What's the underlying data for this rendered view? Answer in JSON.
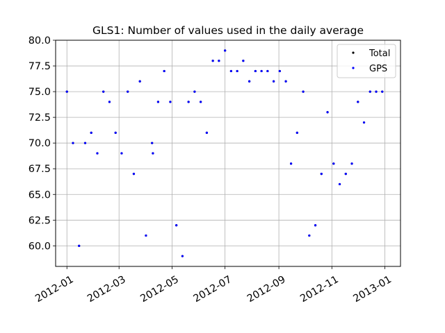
{
  "chart_data": {
    "type": "scatter",
    "title": "GLS1: Number of values used in the daily average",
    "xlabel": "",
    "ylabel": "",
    "x_tick_labels": [
      "2012-01",
      "2012-03",
      "2012-05",
      "2012-07",
      "2012-09",
      "2012-11",
      "2013-01"
    ],
    "x_ticks": [
      "2012-01-01",
      "2012-03-01",
      "2012-05-01",
      "2012-07-01",
      "2012-09-01",
      "2012-11-01",
      "2013-01-01"
    ],
    "xlim": [
      "2011-12-19",
      "2013-01-19"
    ],
    "ylim": [
      58.0,
      80.0
    ],
    "y_ticks": [
      60.0,
      62.5,
      65.0,
      67.5,
      70.0,
      72.5,
      75.0,
      77.5,
      80.0
    ],
    "y_tick_labels": [
      "60.0",
      "62.5",
      "65.0",
      "67.5",
      "70.0",
      "72.5",
      "75.0",
      "77.5",
      "80.0"
    ],
    "grid": true,
    "legend_position": "top-right",
    "series": [
      {
        "name": "Total",
        "color": "#000000",
        "points": [
          [
            "2012-01-01",
            75
          ],
          [
            "2012-01-08",
            70
          ],
          [
            "2012-01-15",
            60
          ],
          [
            "2012-01-22",
            70
          ],
          [
            "2012-01-29",
            71
          ],
          [
            "2012-02-05",
            69
          ],
          [
            "2012-02-12",
            75
          ],
          [
            "2012-02-19",
            74
          ],
          [
            "2012-02-26",
            71
          ],
          [
            "2012-03-04",
            69
          ],
          [
            "2012-03-11",
            75
          ],
          [
            "2012-03-18",
            67
          ],
          [
            "2012-03-25",
            76
          ],
          [
            "2012-04-01",
            61
          ],
          [
            "2012-04-08",
            70
          ],
          [
            "2012-04-09",
            69
          ],
          [
            "2012-04-15",
            74
          ],
          [
            "2012-04-22",
            77
          ],
          [
            "2012-04-29",
            74
          ],
          [
            "2012-05-06",
            62
          ],
          [
            "2012-05-13",
            59
          ],
          [
            "2012-05-20",
            74
          ],
          [
            "2012-05-27",
            75
          ],
          [
            "2012-06-03",
            74
          ],
          [
            "2012-06-10",
            71
          ],
          [
            "2012-06-17",
            78
          ],
          [
            "2012-06-24",
            78
          ],
          [
            "2012-07-01",
            79
          ],
          [
            "2012-07-08",
            77
          ],
          [
            "2012-07-15",
            77
          ],
          [
            "2012-07-22",
            78
          ],
          [
            "2012-07-29",
            76
          ],
          [
            "2012-08-05",
            77
          ],
          [
            "2012-08-12",
            77
          ],
          [
            "2012-08-19",
            77
          ],
          [
            "2012-08-26",
            76
          ],
          [
            "2012-09-02",
            77
          ],
          [
            "2012-09-09",
            76
          ],
          [
            "2012-09-15",
            68
          ],
          [
            "2012-09-22",
            71
          ],
          [
            "2012-09-29",
            75
          ],
          [
            "2012-10-06",
            61
          ],
          [
            "2012-10-13",
            62
          ],
          [
            "2012-10-20",
            67
          ],
          [
            "2012-10-27",
            73
          ],
          [
            "2012-11-03",
            68
          ],
          [
            "2012-11-10",
            66
          ],
          [
            "2012-11-17",
            67
          ],
          [
            "2012-11-24",
            68
          ],
          [
            "2012-12-01",
            74
          ],
          [
            "2012-12-08",
            72
          ],
          [
            "2012-12-15",
            75
          ],
          [
            "2012-12-22",
            75
          ],
          [
            "2012-12-29",
            75
          ]
        ]
      },
      {
        "name": "GPS",
        "color": "#0000ff",
        "points": [
          [
            "2012-01-01",
            75
          ],
          [
            "2012-01-08",
            70
          ],
          [
            "2012-01-15",
            60
          ],
          [
            "2012-01-22",
            70
          ],
          [
            "2012-01-29",
            71
          ],
          [
            "2012-02-05",
            69
          ],
          [
            "2012-02-12",
            75
          ],
          [
            "2012-02-19",
            74
          ],
          [
            "2012-02-26",
            71
          ],
          [
            "2012-03-04",
            69
          ],
          [
            "2012-03-11",
            75
          ],
          [
            "2012-03-18",
            67
          ],
          [
            "2012-03-25",
            76
          ],
          [
            "2012-04-01",
            61
          ],
          [
            "2012-04-08",
            70
          ],
          [
            "2012-04-09",
            69
          ],
          [
            "2012-04-15",
            74
          ],
          [
            "2012-04-22",
            77
          ],
          [
            "2012-04-29",
            74
          ],
          [
            "2012-05-06",
            62
          ],
          [
            "2012-05-13",
            59
          ],
          [
            "2012-05-20",
            74
          ],
          [
            "2012-05-27",
            75
          ],
          [
            "2012-06-03",
            74
          ],
          [
            "2012-06-10",
            71
          ],
          [
            "2012-06-17",
            78
          ],
          [
            "2012-06-24",
            78
          ],
          [
            "2012-07-01",
            79
          ],
          [
            "2012-07-08",
            77
          ],
          [
            "2012-07-15",
            77
          ],
          [
            "2012-07-22",
            78
          ],
          [
            "2012-07-29",
            76
          ],
          [
            "2012-08-05",
            77
          ],
          [
            "2012-08-12",
            77
          ],
          [
            "2012-08-19",
            77
          ],
          [
            "2012-08-26",
            76
          ],
          [
            "2012-09-02",
            77
          ],
          [
            "2012-09-09",
            76
          ],
          [
            "2012-09-15",
            68
          ],
          [
            "2012-09-22",
            71
          ],
          [
            "2012-09-29",
            75
          ],
          [
            "2012-10-06",
            61
          ],
          [
            "2012-10-13",
            62
          ],
          [
            "2012-10-20",
            67
          ],
          [
            "2012-10-27",
            73
          ],
          [
            "2012-11-03",
            68
          ],
          [
            "2012-11-10",
            66
          ],
          [
            "2012-11-17",
            67
          ],
          [
            "2012-11-24",
            68
          ],
          [
            "2012-12-01",
            74
          ],
          [
            "2012-12-08",
            72
          ],
          [
            "2012-12-15",
            75
          ],
          [
            "2012-12-22",
            75
          ],
          [
            "2012-12-29",
            75
          ]
        ]
      }
    ]
  }
}
